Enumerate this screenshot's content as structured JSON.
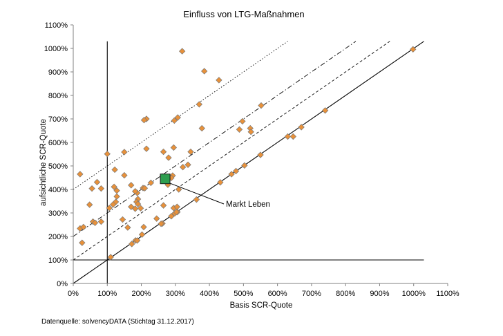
{
  "chart_data": {
    "type": "scatter",
    "title": "Einfluss von LTG-Maßnahmen",
    "xlabel": "Basis SCR-Quote",
    "ylabel": "aufsichtliche SCR-Quote",
    "source": "Datenquelle: solvencyDATA (Stichtag 31.12.2017)",
    "xlim": [
      0,
      1100
    ],
    "ylim": [
      0,
      1100
    ],
    "x_ticks": [
      0,
      100,
      200,
      300,
      400,
      500,
      600,
      700,
      800,
      900,
      1000,
      1100
    ],
    "y_ticks": [
      0,
      100,
      200,
      300,
      400,
      500,
      600,
      700,
      800,
      900,
      1000,
      1100
    ],
    "x_tick_labels": [
      "0%",
      "100%",
      "200%",
      "300%",
      "400%",
      "500%",
      "600%",
      "700%",
      "800%",
      "900%",
      "1000%",
      "1100%"
    ],
    "y_tick_labels": [
      "0%",
      "100%",
      "200%",
      "300%",
      "400%",
      "500%",
      "600%",
      "700%",
      "800%",
      "900%",
      "1000%",
      "1100%"
    ],
    "grid": false,
    "legend": "none",
    "colors": {
      "marker_fill": "#e8913a",
      "marker_stroke": "#7a7a7a",
      "highlight_fill": "#2e9e4f",
      "highlight_stroke": "#1a1a1a",
      "line": "#000000"
    },
    "reference_lines": [
      {
        "kind": "vertical",
        "x": 100,
        "style": "solid"
      },
      {
        "kind": "horizontal",
        "y": 100,
        "style": "solid"
      },
      {
        "kind": "diagonal",
        "offset": 0,
        "style": "solid"
      },
      {
        "kind": "diagonal",
        "offset": 100,
        "style": "dashed"
      },
      {
        "kind": "diagonal",
        "offset": 200,
        "style": "dashdot"
      },
      {
        "kind": "diagonal",
        "offset": 400,
        "style": "dotted"
      }
    ],
    "series": [
      {
        "values": [
          [
            320,
            988
          ],
          [
            385,
            903
          ],
          [
            428,
            865
          ],
          [
            370,
            762
          ],
          [
            552,
            757
          ],
          [
            297,
            693
          ],
          [
            307,
            706
          ],
          [
            215,
            700
          ],
          [
            208,
            695
          ],
          [
            497,
            690
          ],
          [
            378,
            660
          ],
          [
            520,
            660
          ],
          [
            522,
            645
          ],
          [
            488,
            655
          ],
          [
            100,
            551
          ],
          [
            150,
            559
          ],
          [
            215,
            573
          ],
          [
            265,
            560
          ],
          [
            295,
            578
          ],
          [
            280,
            535
          ],
          [
            345,
            560
          ],
          [
            337,
            505
          ],
          [
            322,
            495
          ],
          [
            20,
            465
          ],
          [
            122,
            484
          ],
          [
            150,
            460
          ],
          [
            292,
            459
          ],
          [
            288,
            449
          ],
          [
            205,
            406
          ],
          [
            210,
            405
          ],
          [
            228,
            428
          ],
          [
            262,
            455
          ],
          [
            277,
            445
          ],
          [
            278,
            420
          ],
          [
            310,
            400
          ],
          [
            55,
            404
          ],
          [
            70,
            431
          ],
          [
            82,
            404
          ],
          [
            120,
            411
          ],
          [
            170,
            418
          ],
          [
            188,
            385
          ],
          [
            182,
            392
          ],
          [
            128,
            395
          ],
          [
            128,
            370
          ],
          [
            125,
            347
          ],
          [
            190,
            359
          ],
          [
            186,
            347
          ],
          [
            198,
            320
          ],
          [
            190,
            338
          ],
          [
            170,
            326
          ],
          [
            265,
            332
          ],
          [
            262,
            255
          ],
          [
            245,
            276
          ],
          [
            182,
            318
          ],
          [
            106,
            321
          ],
          [
            117,
            336
          ],
          [
            145,
            272
          ],
          [
            48,
            335
          ],
          [
            20,
            234
          ],
          [
            30,
            240
          ],
          [
            58,
            263
          ],
          [
            64,
            258
          ],
          [
            82,
            263
          ],
          [
            160,
            238
          ],
          [
            207,
            240
          ],
          [
            202,
            208
          ],
          [
            172,
            168
          ],
          [
            183,
            183
          ],
          [
            188,
            183
          ],
          [
            26,
            173
          ],
          [
            110,
            112
          ],
          [
            258,
            254
          ],
          [
            295,
            321
          ],
          [
            305,
            326
          ],
          [
            288,
            286
          ],
          [
            306,
            304
          ],
          [
            298,
            298
          ],
          [
            303,
            304
          ],
          [
            362,
            357
          ],
          [
            432,
            430
          ],
          [
            465,
            465
          ],
          [
            478,
            478
          ],
          [
            503,
            502
          ],
          [
            550,
            547
          ],
          [
            630,
            625
          ],
          [
            646,
            625
          ],
          [
            670,
            665
          ],
          [
            740,
            736
          ],
          [
            998,
            996
          ]
        ]
      }
    ],
    "highlight": {
      "label": "Markt Leben",
      "x": 270,
      "y": 445
    }
  }
}
